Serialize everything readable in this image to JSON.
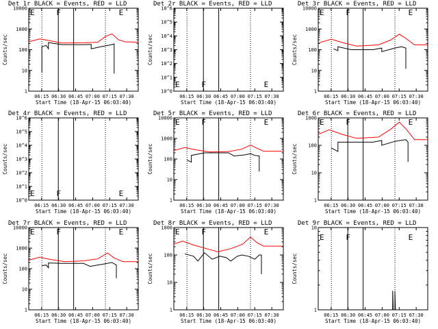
{
  "chart_data": [
    {
      "type": "line",
      "title": "Det 1r  BLACK = Events, RED = LLD",
      "xlabel": "Start Time (18-Apr-15 06:03:40)",
      "ylabel": "Counts/sec",
      "ylim": [
        1,
        10000
      ],
      "log": true,
      "xticks": [
        "06:15",
        "06:30",
        "06:45",
        "07:00",
        "07:15",
        "07:30"
      ],
      "yticks": [
        "1",
        "10",
        "100",
        "1000",
        "10000"
      ],
      "markers": [
        {
          "label": "E",
          "x": "06:03:40"
        },
        {
          "label": "F",
          "x": "06:30"
        },
        {
          "label": "E",
          "x": "07:15"
        }
      ],
      "series": [
        {
          "name": "LLD",
          "color": "#ff0000",
          "points": [
            [
              0,
              240
            ],
            [
              0.1,
              330
            ],
            [
              0.18,
              280
            ],
            [
              0.3,
              210
            ],
            [
              0.5,
              215
            ],
            [
              0.63,
              230
            ],
            [
              0.7,
              430
            ],
            [
              0.76,
              580
            ],
            [
              0.82,
              300
            ],
            [
              0.88,
              240
            ],
            [
              1,
              230
            ]
          ]
        },
        {
          "name": "Events",
          "color": "#000000",
          "points": [
            [
              0.12,
              8
            ],
            [
              0.12,
              140
            ],
            [
              0.16,
              160
            ],
            [
              0.18,
              110
            ],
            [
              0.18,
              220
            ],
            [
              0.3,
              175
            ],
            [
              0.5,
              175
            ],
            [
              0.57,
              180
            ],
            [
              0.57,
              110
            ],
            [
              0.66,
              140
            ],
            [
              0.76,
              175
            ],
            [
              0.78,
              190
            ],
            [
              0.78,
              7
            ]
          ]
        }
      ]
    },
    {
      "type": "line",
      "title": "Det 2r  BLACK = Events, RED = LLD",
      "xlabel": "Start Time (18-Apr-15 06:03:40)",
      "ylabel": "Counts/sec",
      "ylim": [
        1,
        1000000
      ],
      "log": true,
      "xticks": [
        "06:15",
        "06:30",
        "06:45",
        "07:00",
        "07:15",
        "07:30"
      ],
      "yticks": [
        "10^0",
        "10^1",
        "10^2",
        "10^3",
        "10^4",
        "10^5",
        "10^6"
      ],
      "markers": [
        {
          "label": "E",
          "x": "06:03:40"
        },
        {
          "label": "F",
          "x": "06:30"
        },
        {
          "label": "E",
          "x": "07:15"
        }
      ],
      "series": []
    },
    {
      "type": "line",
      "title": "Det 3r  BLACK = Events, RED = LLD",
      "xlabel": "Start Time (18-Apr-15 06:03:40)",
      "ylabel": "Counts/sec",
      "ylim": [
        1,
        10000
      ],
      "log": true,
      "xticks": [
        "06:15",
        "06:30",
        "06:45",
        "07:00",
        "07:15",
        "07:30"
      ],
      "yticks": [
        "1",
        "10",
        "100",
        "1000",
        "10000"
      ],
      "markers": [
        {
          "label": "E",
          "x": "06:03:40"
        },
        {
          "label": "F",
          "x": "06:30"
        },
        {
          "label": "E",
          "x": "07:15"
        }
      ],
      "series": [
        {
          "name": "LLD",
          "color": "#ff0000",
          "points": [
            [
              0,
              210
            ],
            [
              0.12,
              320
            ],
            [
              0.22,
              220
            ],
            [
              0.35,
              150
            ],
            [
              0.55,
              170
            ],
            [
              0.66,
              290
            ],
            [
              0.74,
              560
            ],
            [
              0.8,
              350
            ],
            [
              0.88,
              170
            ],
            [
              1,
              170
            ]
          ]
        },
        {
          "name": "Events",
          "color": "#000000",
          "points": [
            [
              0.14,
              110
            ],
            [
              0.18,
              90
            ],
            [
              0.18,
              140
            ],
            [
              0.3,
              100
            ],
            [
              0.5,
              100
            ],
            [
              0.58,
              120
            ],
            [
              0.58,
              80
            ],
            [
              0.7,
              120
            ],
            [
              0.76,
              140
            ],
            [
              0.8,
              120
            ],
            [
              0.8,
              12
            ]
          ]
        }
      ]
    },
    {
      "type": "line",
      "title": "Det 4r  BLACK = Events, RED = LLD",
      "xlabel": "Start Time (18-Apr-15 06:03:40)",
      "ylabel": "Counts/sec",
      "ylim": [
        1,
        1000000
      ],
      "log": true,
      "xticks": [
        "06:15",
        "06:30",
        "06:45",
        "07:00",
        "07:15",
        "07:30"
      ],
      "yticks": [
        "10^0",
        "10^1",
        "10^2",
        "10^3",
        "10^4",
        "10^5",
        "10^6"
      ],
      "markers": [
        {
          "label": "E",
          "x": "06:03:40"
        },
        {
          "label": "F",
          "x": "06:30"
        },
        {
          "label": "E",
          "x": "07:15"
        }
      ],
      "series": []
    },
    {
      "type": "line",
      "title": "Det 5r  BLACK = Events, RED = LLD",
      "xlabel": "Start Time (18-Apr-15 06:03:40)",
      "ylabel": "Counts/sec",
      "ylim": [
        1,
        10000
      ],
      "log": true,
      "xticks": [
        "06:15",
        "06:30",
        "06:45",
        "07:00",
        "07:15",
        "07:30"
      ],
      "yticks": [
        "1",
        "10",
        "100",
        "1000",
        "10000"
      ],
      "markers": [
        {
          "label": "E",
          "x": "06:03:40"
        },
        {
          "label": "F",
          "x": "06:30"
        },
        {
          "label": "E",
          "x": "07:15"
        }
      ],
      "series": [
        {
          "name": "LLD",
          "color": "#ff0000",
          "points": [
            [
              0,
              260
            ],
            [
              0.1,
              360
            ],
            [
              0.2,
              280
            ],
            [
              0.33,
              220
            ],
            [
              0.5,
              230
            ],
            [
              0.62,
              300
            ],
            [
              0.7,
              480
            ],
            [
              0.76,
              330
            ],
            [
              0.82,
              240
            ],
            [
              1,
              240
            ]
          ]
        },
        {
          "name": "Events",
          "color": "#000000",
          "points": [
            [
              0.12,
              90
            ],
            [
              0.16,
              70
            ],
            [
              0.16,
              150
            ],
            [
              0.28,
              200
            ],
            [
              0.5,
              200
            ],
            [
              0.55,
              140
            ],
            [
              0.65,
              160
            ],
            [
              0.7,
              180
            ],
            [
              0.74,
              150
            ],
            [
              0.78,
              140
            ],
            [
              0.78,
              25
            ]
          ]
        }
      ]
    },
    {
      "type": "line",
      "title": "Det 6r  BLACK = Events, RED = LLD",
      "xlabel": "Start Time (18-Apr-15 06:03:40)",
      "ylabel": "Counts/sec",
      "ylim": [
        1,
        1000
      ],
      "log": true,
      "xticks": [
        "06:15",
        "06:30",
        "06:45",
        "07:00",
        "07:15",
        "07:30"
      ],
      "yticks": [
        "1",
        "10",
        "100",
        "1000"
      ],
      "markers": [
        {
          "label": "E",
          "x": "06:03:40"
        },
        {
          "label": "F",
          "x": "06:30"
        },
        {
          "label": "E",
          "x": "07:15"
        }
      ],
      "series": [
        {
          "name": "LLD",
          "color": "#ff0000",
          "points": [
            [
              0,
              250
            ],
            [
              0.1,
              370
            ],
            [
              0.22,
              250
            ],
            [
              0.35,
              180
            ],
            [
              0.55,
              200
            ],
            [
              0.66,
              380
            ],
            [
              0.74,
              700
            ],
            [
              0.8,
              400
            ],
            [
              0.88,
              160
            ],
            [
              1,
              160
            ]
          ]
        },
        {
          "name": "Events",
          "color": "#000000",
          "points": [
            [
              0.12,
              80
            ],
            [
              0.18,
              60
            ],
            [
              0.18,
              130
            ],
            [
              0.3,
              130
            ],
            [
              0.5,
              130
            ],
            [
              0.58,
              150
            ],
            [
              0.58,
              100
            ],
            [
              0.7,
              140
            ],
            [
              0.8,
              160
            ],
            [
              0.82,
              130
            ],
            [
              0.82,
              25
            ]
          ]
        }
      ]
    },
    {
      "type": "line",
      "title": "Det 7r  BLACK = Events, RED = LLD",
      "xlabel": "Start Time (18-Apr-15 06:03:40)",
      "ylabel": "Counts/sec",
      "ylim": [
        1,
        10000
      ],
      "log": true,
      "xticks": [
        "06:15",
        "06:30",
        "06:45",
        "07:00",
        "07:15",
        "07:30"
      ],
      "yticks": [
        "1",
        "10",
        "100",
        "1000",
        "10000"
      ],
      "markers": [
        {
          "label": "E",
          "x": "06:03:40"
        },
        {
          "label": "F",
          "x": "06:30"
        },
        {
          "label": "E",
          "x": "07:15"
        }
      ],
      "series": [
        {
          "name": "LLD",
          "color": "#ff0000",
          "points": [
            [
              0,
              260
            ],
            [
              0.1,
              360
            ],
            [
              0.2,
              280
            ],
            [
              0.33,
              220
            ],
            [
              0.5,
              240
            ],
            [
              0.63,
              300
            ],
            [
              0.72,
              580
            ],
            [
              0.78,
              330
            ],
            [
              0.86,
              220
            ],
            [
              1,
              220
            ]
          ]
        },
        {
          "name": "Events",
          "color": "#000000",
          "points": [
            [
              0.12,
              140
            ],
            [
              0.16,
              150
            ],
            [
              0.18,
              110
            ],
            [
              0.18,
              190
            ],
            [
              0.3,
              180
            ],
            [
              0.5,
              180
            ],
            [
              0.56,
              130
            ],
            [
              0.66,
              160
            ],
            [
              0.76,
              200
            ],
            [
              0.8,
              150
            ],
            [
              0.8,
              35
            ]
          ]
        }
      ]
    },
    {
      "type": "line",
      "title": "Det 8r  BLACK = Events, RED = LLD",
      "xlabel": "Start Time (18-Apr-15 06:03:40)",
      "ylabel": "Counts/sec",
      "ylim": [
        1,
        1000
      ],
      "log": true,
      "xticks": [
        "06:15",
        "06:30",
        "06:45",
        "07:00",
        "07:15",
        "07:30"
      ],
      "yticks": [
        "1",
        "10",
        "100",
        "1000"
      ],
      "markers": [
        {
          "label": "E",
          "x": "06:03:40"
        },
        {
          "label": "F",
          "x": "06:30"
        },
        {
          "label": "E",
          "x": "07:15"
        }
      ],
      "series": [
        {
          "name": "LLD",
          "color": "#ff0000",
          "points": [
            [
              0,
              250
            ],
            [
              0.08,
              320
            ],
            [
              0.18,
              230
            ],
            [
              0.3,
              170
            ],
            [
              0.4,
              130
            ],
            [
              0.52,
              170
            ],
            [
              0.63,
              250
            ],
            [
              0.7,
              450
            ],
            [
              0.76,
              280
            ],
            [
              0.82,
              210
            ],
            [
              1,
              210
            ]
          ]
        },
        {
          "name": "Events",
          "color": "#000000",
          "points": [
            [
              0.1,
              110
            ],
            [
              0.18,
              90
            ],
            [
              0.22,
              60
            ],
            [
              0.28,
              120
            ],
            [
              0.35,
              70
            ],
            [
              0.42,
              90
            ],
            [
              0.48,
              80
            ],
            [
              0.52,
              60
            ],
            [
              0.58,
              90
            ],
            [
              0.62,
              100
            ],
            [
              0.68,
              90
            ],
            [
              0.74,
              70
            ],
            [
              0.78,
              100
            ],
            [
              0.8,
              100
            ],
            [
              0.8,
              20
            ]
          ]
        }
      ]
    },
    {
      "type": "line",
      "title": "Det 9r  BLACK = Events, RED = LLD",
      "xlabel": "Start Time (18-Apr-15 06:03:40)",
      "ylabel": "Counts/sec",
      "ylim": [
        1,
        10
      ],
      "log": true,
      "xticks": [
        "06:15",
        "06:30",
        "06:45",
        "07:00",
        "07:15",
        "07:30"
      ],
      "yticks": [
        "1",
        "10"
      ],
      "markers": [
        {
          "label": "E",
          "x": "06:03:40"
        },
        {
          "label": "F",
          "x": "06:30"
        },
        {
          "label": "E",
          "x": "07:15"
        }
      ],
      "series": [
        {
          "name": "Events",
          "color": "#000000",
          "points": [
            [
              0.68,
              1
            ],
            [
              0.68,
              1.7
            ],
            [
              0.685,
              1
            ],
            [
              0.7,
              1
            ],
            [
              0.7,
              1.7
            ],
            [
              0.705,
              1
            ]
          ]
        }
      ]
    }
  ]
}
